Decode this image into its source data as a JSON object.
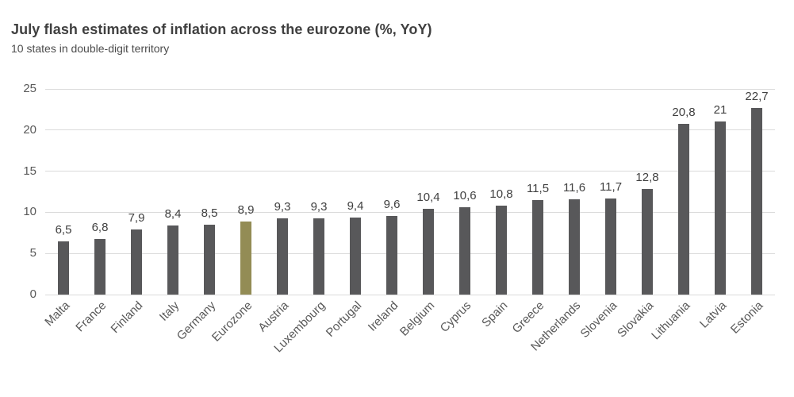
{
  "header": {
    "title": "July flash estimates of inflation across the eurozone (%, YoY)",
    "subtitle": "10 states in double-digit territory"
  },
  "colors": {
    "bar_default": "#58585A",
    "bar_highlight": "#938C55",
    "gridline": "#DBDBDB",
    "axis_text": "#595959",
    "value_text": "#404040",
    "title_text": "#404040"
  },
  "chart_data": {
    "type": "bar",
    "title": "July flash estimates of inflation across the eurozone (%, YoY)",
    "subtitle": "10 states in double-digit territory",
    "categories": [
      "Malta",
      "France",
      "Finland",
      "Italy",
      "Germany",
      "Eurozone",
      "Austria",
      "Luxembourg",
      "Portugal",
      "Ireland",
      "Belgium",
      "Cyprus",
      "Spain",
      "Greece",
      "Netherlands",
      "Slovenia",
      "Slovakia",
      "Lithuania",
      "Latvia",
      "Estonia"
    ],
    "values": [
      6.5,
      6.8,
      7.9,
      8.4,
      8.5,
      8.9,
      9.3,
      9.3,
      9.4,
      9.6,
      10.4,
      10.6,
      10.8,
      11.5,
      11.6,
      11.7,
      12.8,
      20.8,
      21,
      22.7
    ],
    "value_labels": [
      "6,5",
      "6,8",
      "7,9",
      "8,4",
      "8,5",
      "8,9",
      "9,3",
      "9,3",
      "9,4",
      "9,6",
      "10,4",
      "10,6",
      "10,8",
      "11,5",
      "11,6",
      "11,7",
      "12,8",
      "20,8",
      "21",
      "22,7"
    ],
    "highlight_category": "Eurozone",
    "highlight_index": 5,
    "yticks": [
      0,
      5,
      10,
      15,
      20,
      25
    ],
    "ylim": [
      0,
      25
    ],
    "xlabel": "",
    "ylabel": "",
    "grid": true,
    "legend": false,
    "x_label_rotation_deg": -45
  }
}
